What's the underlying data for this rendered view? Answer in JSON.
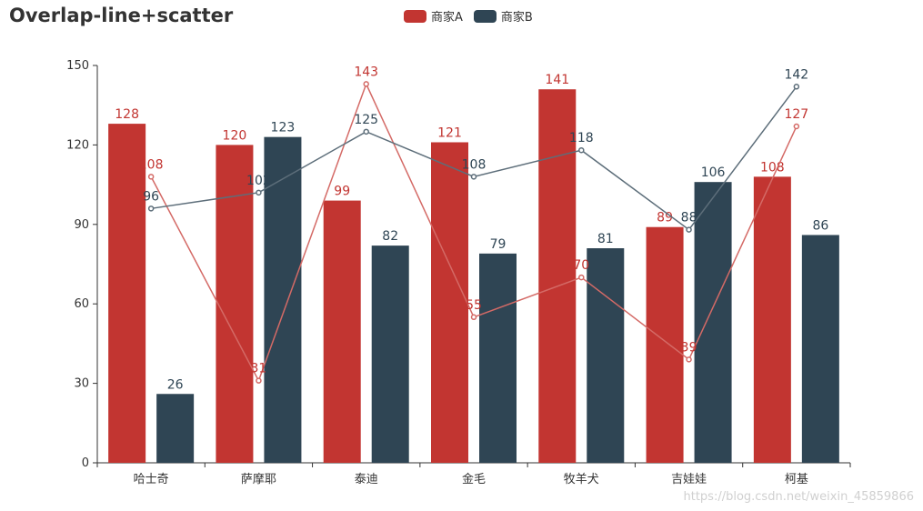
{
  "title": "Overlap-line+scatter",
  "watermark": "https://blog.csdn.net/weixin_45859866",
  "colors": {
    "A": "#c23531",
    "B": "#2f4554",
    "axis": "#333333"
  },
  "chart_data": {
    "type": "bar",
    "categories": [
      "哈士奇",
      "萨摩耶",
      "泰迪",
      "金毛",
      "牧羊犬",
      "吉娃娃",
      "柯基"
    ],
    "ylim": [
      0,
      150
    ],
    "yticks": [
      0,
      30,
      60,
      90,
      120,
      150
    ],
    "legend_position": "top-center",
    "series": [
      {
        "name": "商家A",
        "type": "bar",
        "values": [
          128,
          120,
          99,
          121,
          141,
          89,
          108
        ]
      },
      {
        "name": "商家B",
        "type": "bar",
        "values": [
          26,
          123,
          82,
          79,
          81,
          106,
          86
        ]
      },
      {
        "name": "商家A",
        "type": "line",
        "values": [
          108,
          31,
          143,
          55,
          70,
          39,
          127
        ]
      },
      {
        "name": "商家B",
        "type": "line",
        "values": [
          96,
          102,
          125,
          108,
          118,
          88,
          142
        ]
      }
    ]
  }
}
